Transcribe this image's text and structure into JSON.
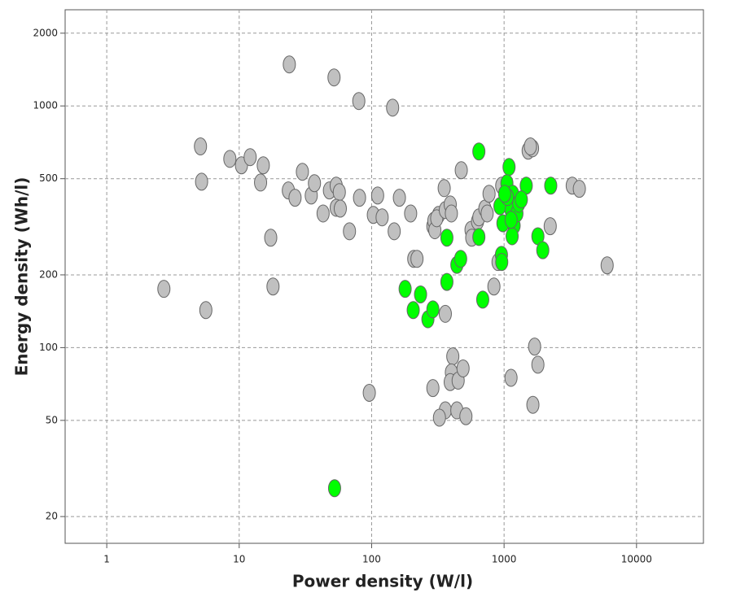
{
  "chart_data": {
    "type": "scatter",
    "xlabel": "Power density (W/l)",
    "ylabel": "Energy density (Wh/l)",
    "xscale": "log",
    "yscale": "log",
    "grid": true,
    "xlim": [
      0.485,
      32000
    ],
    "ylim": [
      15.5,
      2500
    ],
    "xticks": [
      1,
      10,
      100,
      1000,
      10000
    ],
    "yticks": [
      20,
      50,
      100,
      200,
      500,
      1000,
      2000
    ],
    "series": [
      {
        "color": "#c0c0c0",
        "x": [
          2.7,
          5.6,
          5.1,
          5.2,
          8.5,
          10.4,
          12.1,
          15.2,
          14.5,
          17.3,
          18,
          23.9,
          23.5,
          26.4,
          30,
          35,
          37,
          43,
          48,
          52,
          54,
          57,
          54,
          58,
          68,
          80,
          81,
          96,
          103,
          111,
          120,
          144,
          148,
          162,
          197,
          208,
          220,
          290,
          295,
          320,
          300,
          310,
          353,
          360,
          392,
          400,
          360,
          290,
          360,
          325,
          410,
          400,
          392,
          450,
          490,
          440,
          515,
          475,
          563,
          570,
          630,
          645,
          716,
          745,
          838,
          900,
          770,
          960,
          1128,
          1520,
          1640,
          1580,
          1700,
          1800,
          1650,
          2230,
          3270,
          3700,
          6000
        ],
        "values": [
          175,
          143,
          680,
          486,
          604,
          568,
          614,
          568,
          482,
          285,
          179,
          1485,
          447,
          417,
          534,
          426,
          479,
          359,
          447,
          1312,
          468,
          440,
          379,
          376,
          303,
          1048,
          417,
          65,
          354,
          426,
          346,
          984,
          303,
          417,
          359,
          233,
          233,
          318,
          335,
          354,
          306,
          343,
          457,
          371,
          391,
          359,
          138,
          68,
          55,
          51.3,
          92,
          79,
          72,
          73,
          82,
          55,
          52,
          542,
          307,
          285,
          333,
          346,
          376,
          359,
          179,
          226,
          433,
          468,
          75,
          653,
          668,
          680,
          101,
          85,
          58,
          318,
          468,
          454,
          219
        ]
      },
      {
        "color": "#00ff00",
        "x": [
          645,
          52.5,
          179,
          206,
          234,
          266,
          290,
          370,
          370,
          440,
          470,
          645,
          690,
          955,
          960,
          930,
          980,
          1090,
          1050,
          1160,
          1130,
          1190,
          1150,
          1250,
          1290,
          1060,
          1470,
          1350,
          2250,
          1800,
          1960,
          1130,
          1010
        ],
        "values": [
          648,
          26.2,
          175,
          143,
          166,
          131,
          144,
          285,
          187,
          220,
          233,
          287,
          158,
          242,
          226,
          385,
          327,
          559,
          479,
          433,
          371,
          320,
          289,
          359,
          394,
          420,
          468,
          410,
          468,
          289,
          253,
          338,
          433
        ]
      }
    ]
  }
}
